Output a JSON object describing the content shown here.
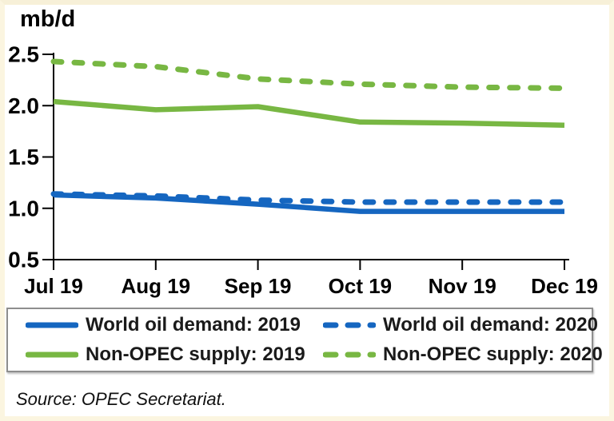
{
  "y_axis_unit": "mb/d",
  "source": {
    "text": "Source: OPEC Secretariat."
  },
  "colors": {
    "blue": "#1566C0",
    "green": "#78B743",
    "axis": "#000000",
    "frame": "#FBF5E0",
    "legend_border": "#8e8e8e"
  },
  "chart_data": {
    "type": "line",
    "title": "",
    "xlabel": "",
    "ylabel": "mb/d",
    "grid": false,
    "legend_position": "bottom",
    "categories": [
      "Jul 19",
      "Aug 19",
      "Sep 19",
      "Oct 19",
      "Nov 19",
      "Dec 19"
    ],
    "ylim": [
      0.5,
      2.5
    ],
    "y_tick_labels": [
      "0.5",
      "1.0",
      "1.5",
      "2.0",
      "2.5"
    ],
    "y_tick_values": [
      0.5,
      1.0,
      1.5,
      2.0,
      2.5
    ],
    "series": [
      {
        "name": "World oil demand: 2019",
        "color": "#1566C0",
        "style": "solid",
        "values": [
          1.13,
          1.1,
          1.04,
          0.97,
          0.97,
          0.97
        ]
      },
      {
        "name": "World oil demand: 2020",
        "color": "#1566C0",
        "style": "dashed",
        "values": [
          1.14,
          1.12,
          1.08,
          1.06,
          1.06,
          1.06
        ]
      },
      {
        "name": "Non-OPEC supply: 2019",
        "color": "#78B743",
        "style": "solid",
        "values": [
          2.04,
          1.96,
          1.99,
          1.84,
          1.83,
          1.81
        ]
      },
      {
        "name": "Non-OPEC supply: 2020",
        "color": "#78B743",
        "style": "dashed",
        "values": [
          2.43,
          2.38,
          2.26,
          2.21,
          2.18,
          2.17
        ]
      }
    ]
  }
}
